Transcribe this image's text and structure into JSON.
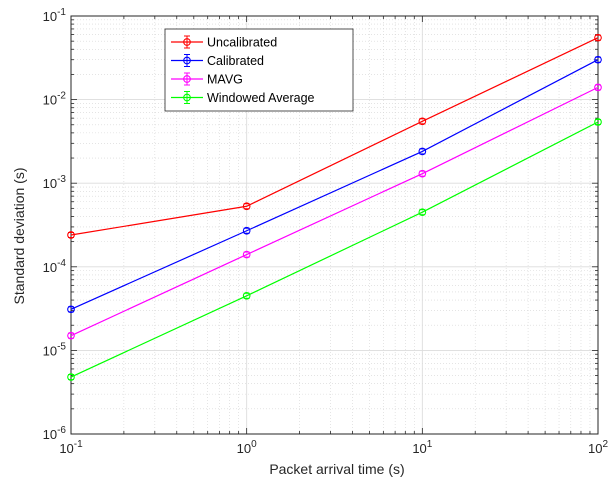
{
  "chart_data": {
    "type": "line",
    "xscale": "log",
    "yscale": "log",
    "x": [
      0.1,
      1,
      10,
      100
    ],
    "xlim": [
      0.1,
      100
    ],
    "ylim": [
      1e-06,
      0.1
    ],
    "xlabel": "Packet arrival time (s)",
    "ylabel": "Standard deviation (s)",
    "grid": true,
    "minor_grid": true,
    "legend_position": "top-left",
    "x_ticks": [
      {
        "value": 0.1,
        "base": "10",
        "exp": "-1"
      },
      {
        "value": 1,
        "base": "10",
        "exp": "0"
      },
      {
        "value": 10,
        "base": "10",
        "exp": "1"
      },
      {
        "value": 100,
        "base": "10",
        "exp": "2"
      }
    ],
    "y_ticks": [
      {
        "value": 1e-06,
        "base": "10",
        "exp": "-6"
      },
      {
        "value": 1e-05,
        "base": "10",
        "exp": "-5"
      },
      {
        "value": 0.0001,
        "base": "10",
        "exp": "-4"
      },
      {
        "value": 0.001,
        "base": "10",
        "exp": "-3"
      },
      {
        "value": 0.01,
        "base": "10",
        "exp": "-2"
      },
      {
        "value": 0.1,
        "base": "10",
        "exp": "-1"
      }
    ],
    "series": [
      {
        "name": "Uncalibrated",
        "color": "#ff0000",
        "values": [
          0.00024,
          0.00053,
          0.0055,
          0.055
        ]
      },
      {
        "name": "Calibrated",
        "color": "#0000ff",
        "values": [
          3.1e-05,
          0.00027,
          0.0024,
          0.03
        ]
      },
      {
        "name": "MAVG",
        "color": "#ff00ff",
        "values": [
          1.5e-05,
          0.00014,
          0.0013,
          0.014
        ]
      },
      {
        "name": "Windowed Average",
        "color": "#00ff00",
        "values": [
          4.8e-06,
          4.5e-05,
          0.00045,
          0.0054
        ]
      }
    ]
  }
}
